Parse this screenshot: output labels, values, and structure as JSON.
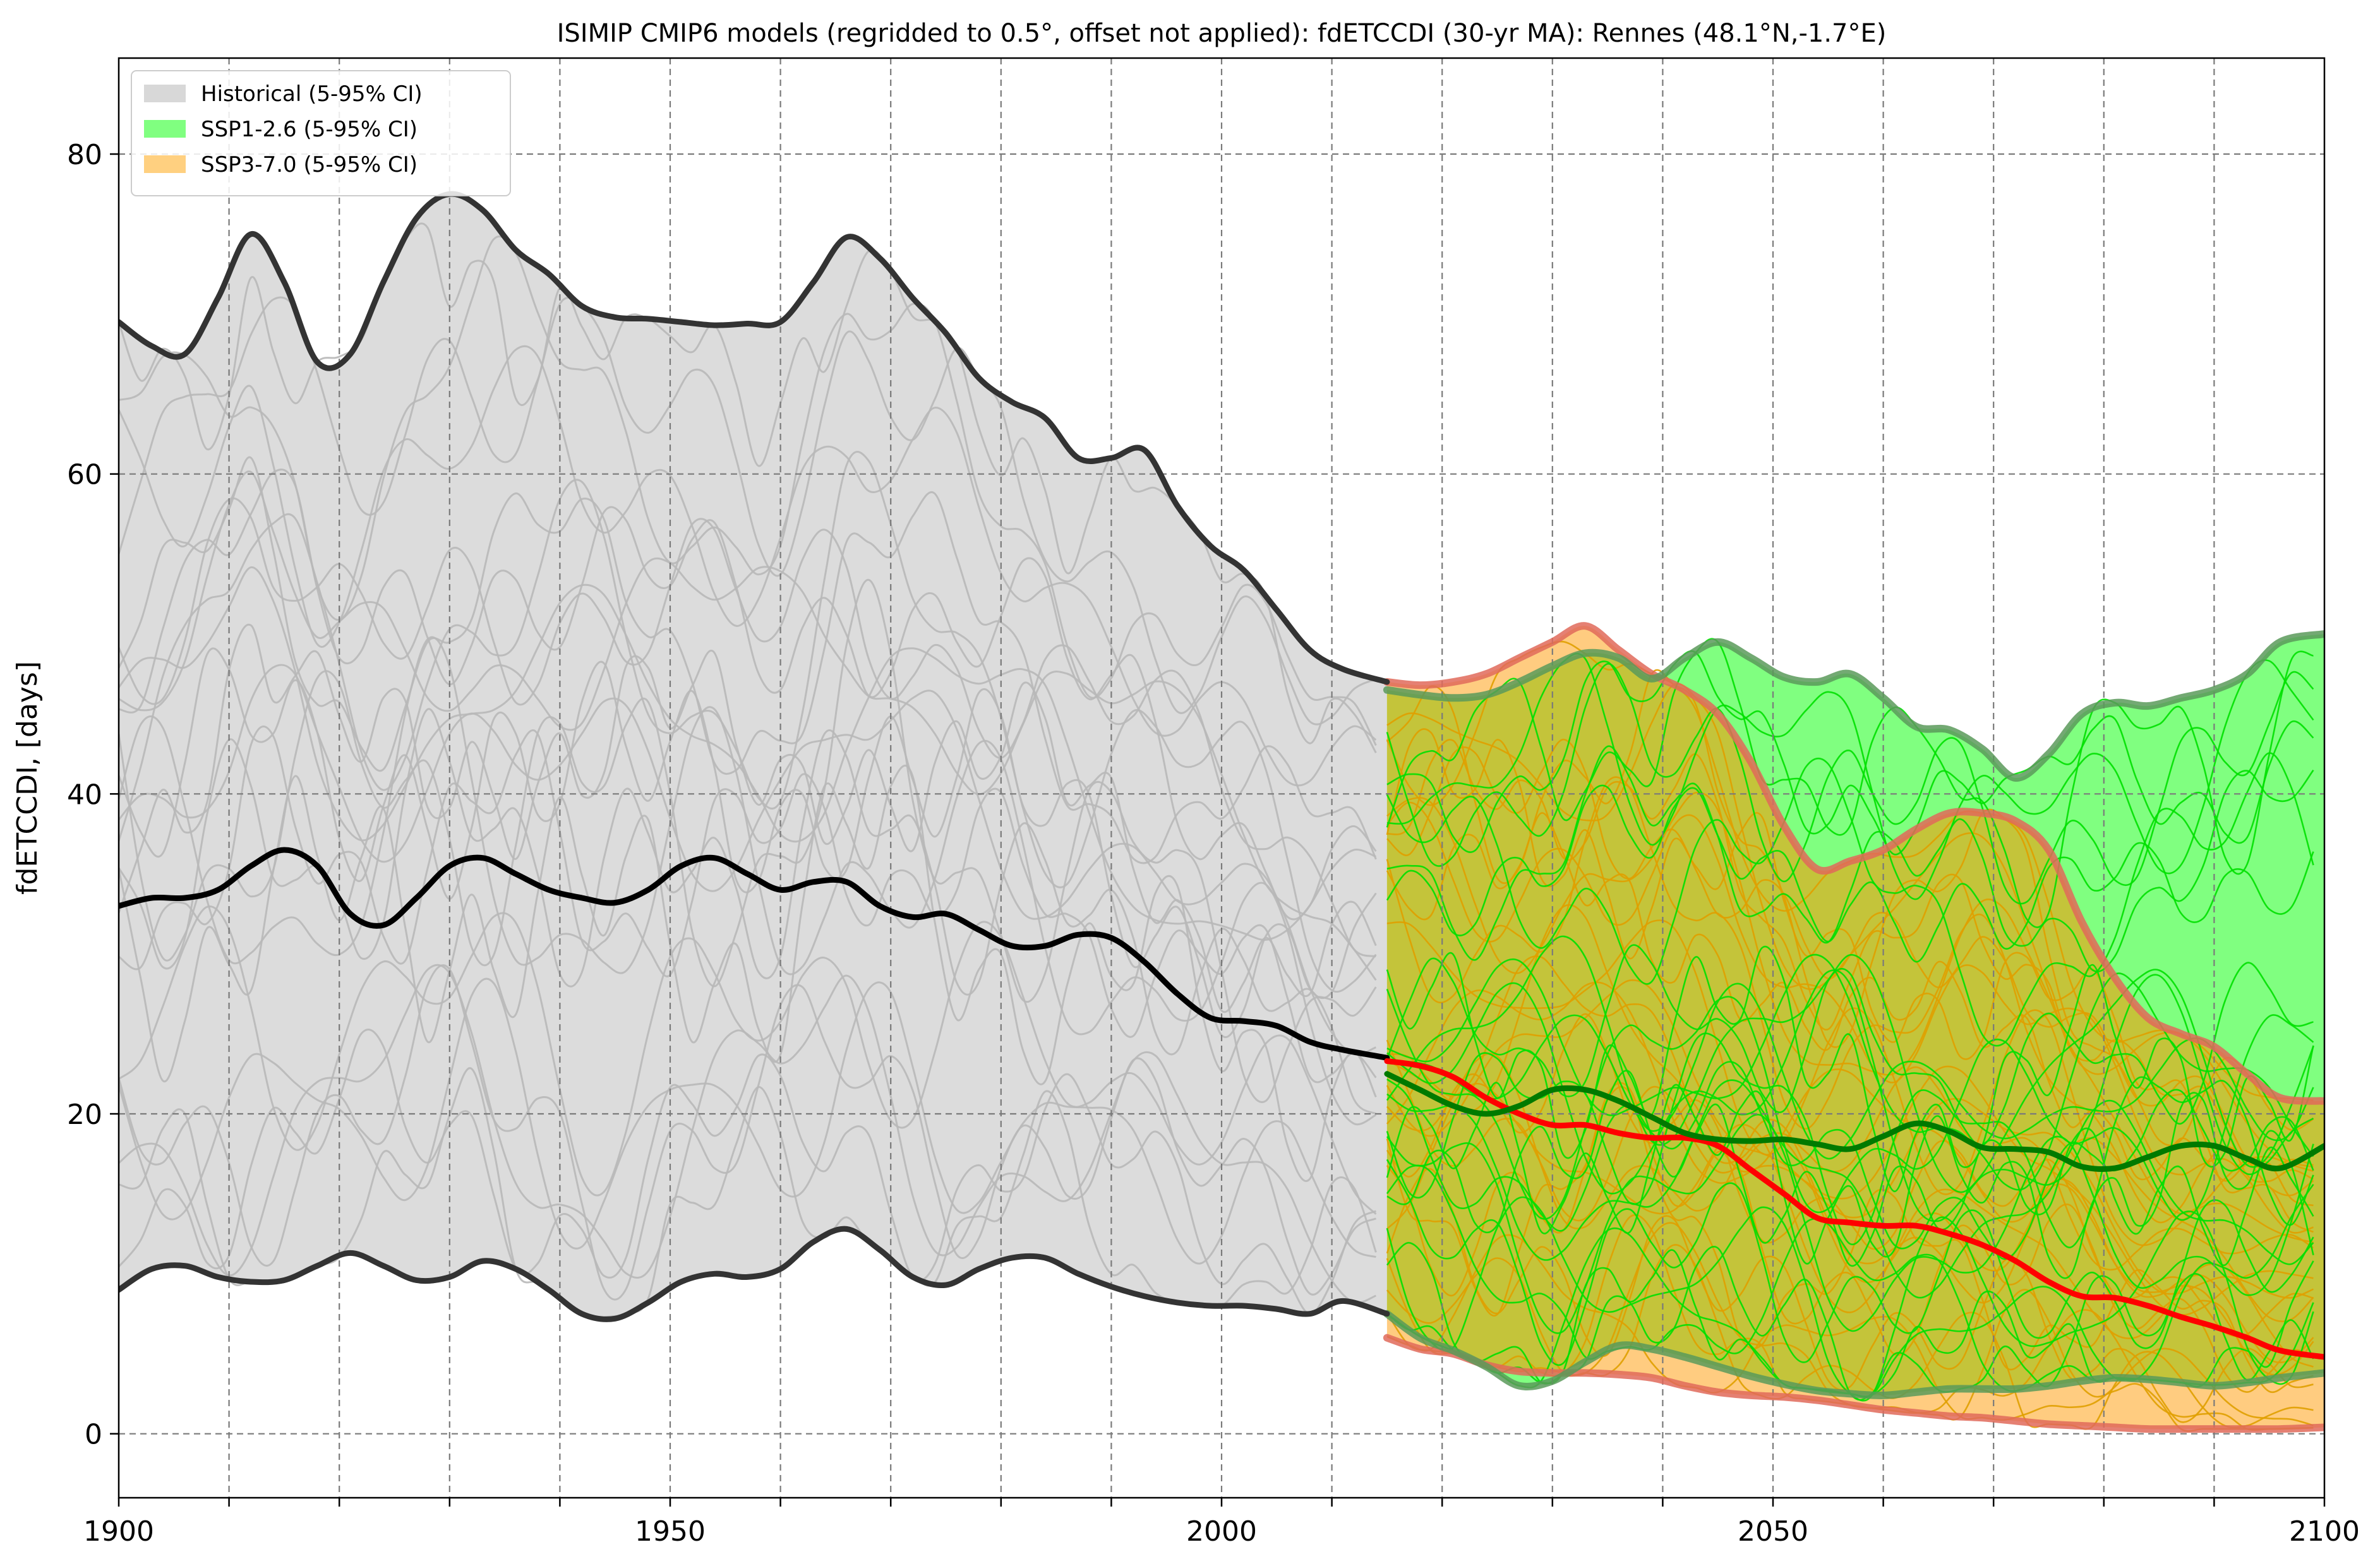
{
  "chart_data": {
    "type": "line",
    "title": "ISIMIP CMIP6 models (regridded to 0.5°, offset not applied): fdETCCDI (30-yr MA): Rennes (48.1°N,-1.7°E)",
    "xlabel": "",
    "ylabel": "fdETCCDI, [days]",
    "xlim": [
      1900,
      2100
    ],
    "ylim": [
      -4,
      86
    ],
    "x_ticks": [
      1900,
      1950,
      2000,
      2050,
      2100
    ],
    "y_ticks": [
      0,
      20,
      40,
      60,
      80
    ],
    "grid": true,
    "legend_position": "top-left",
    "legend": [
      {
        "label": "Historical (5-95% CI)",
        "color": "#d8d8d8"
      },
      {
        "label": "SSP1-2.6 (5-95% CI)",
        "color": "#80ff80"
      },
      {
        "label": "SSP3-7.0 (5-95% CI)",
        "color": "#ffd080"
      }
    ],
    "colors": {
      "historical_band": "#dcdcdc",
      "historical_line": "#333333",
      "historical_median": "#000000",
      "historical_members": "#b8b8b8",
      "ssp126_band": "#80ff80",
      "ssp126_line": "#5a9a5a",
      "ssp126_median": "#007a00",
      "ssp126_members": "#00e000",
      "ssp370_band": "#ffcc80",
      "ssp370_line": "#e06a5a",
      "ssp370_median": "#ff0000",
      "ssp370_members": "#e0a000",
      "overlap": "#c4c43a"
    },
    "historical": {
      "x": [
        1900,
        1903,
        1906,
        1909,
        1912,
        1915,
        1918,
        1921,
        1924,
        1927,
        1930,
        1933,
        1936,
        1939,
        1942,
        1945,
        1948,
        1951,
        1954,
        1957,
        1960,
        1963,
        1966,
        1969,
        1972,
        1975,
        1978,
        1981,
        1984,
        1987,
        1990,
        1993,
        1996,
        1999,
        2002,
        2005,
        2008,
        2011,
        2015
      ],
      "upper": [
        69.5,
        68.0,
        67.5,
        71.0,
        75.0,
        72.0,
        67.0,
        67.5,
        72.0,
        76.0,
        77.5,
        76.5,
        74.0,
        72.5,
        70.5,
        69.8,
        69.7,
        69.5,
        69.3,
        69.4,
        69.5,
        72.0,
        74.8,
        73.5,
        71.0,
        68.8,
        66.0,
        64.5,
        63.5,
        61.0,
        61.0,
        61.5,
        58.0,
        55.5,
        54.0,
        51.5,
        49.0,
        47.8,
        47.0
      ],
      "median": [
        33.0,
        33.5,
        33.5,
        34.0,
        35.5,
        36.5,
        35.5,
        32.5,
        31.8,
        33.5,
        35.5,
        36.0,
        35.0,
        34.0,
        33.5,
        33.2,
        34.0,
        35.5,
        36.0,
        35.0,
        34.0,
        34.5,
        34.5,
        33.0,
        32.3,
        32.5,
        31.5,
        30.5,
        30.5,
        31.2,
        31.0,
        29.5,
        27.5,
        26.0,
        25.8,
        25.5,
        24.5,
        24.0,
        23.5
      ],
      "lower": [
        9.0,
        10.3,
        10.5,
        9.8,
        9.5,
        9.6,
        10.5,
        11.3,
        10.5,
        9.6,
        9.8,
        10.8,
        10.3,
        9.0,
        7.5,
        7.2,
        8.2,
        9.5,
        10.0,
        9.8,
        10.3,
        12.0,
        12.8,
        11.5,
        9.8,
        9.3,
        10.3,
        11.0,
        11.0,
        10.0,
        9.2,
        8.6,
        8.2,
        8.0,
        8.0,
        7.8,
        7.5,
        8.3,
        7.5
      ]
    },
    "ssp126": {
      "x": [
        2015,
        2018,
        2021,
        2024,
        2027,
        2030,
        2033,
        2036,
        2039,
        2042,
        2045,
        2048,
        2051,
        2054,
        2057,
        2060,
        2063,
        2066,
        2069,
        2072,
        2075,
        2078,
        2081,
        2084,
        2087,
        2090,
        2093,
        2096,
        2100
      ],
      "upper": [
        46.5,
        46.2,
        46.0,
        46.2,
        47.0,
        48.0,
        48.8,
        48.5,
        47.2,
        48.5,
        49.5,
        48.5,
        47.3,
        47.0,
        47.5,
        46.0,
        44.2,
        44.0,
        42.8,
        41.0,
        42.5,
        45.0,
        45.7,
        45.5,
        46.0,
        46.5,
        47.5,
        49.5,
        50.0
      ],
      "median": [
        22.5,
        21.5,
        20.5,
        20.0,
        20.5,
        21.5,
        21.5,
        20.8,
        19.8,
        18.8,
        18.4,
        18.3,
        18.4,
        18.1,
        17.8,
        18.6,
        19.4,
        18.9,
        17.9,
        17.8,
        17.6,
        16.7,
        16.6,
        17.3,
        18.0,
        18.0,
        17.2,
        16.6,
        18.0
      ],
      "lower": [
        7.5,
        6.0,
        5.2,
        4.2,
        3.0,
        3.3,
        4.5,
        5.5,
        5.3,
        4.8,
        4.2,
        3.6,
        3.1,
        2.7,
        2.5,
        2.4,
        2.6,
        2.8,
        2.8,
        2.8,
        3.0,
        3.3,
        3.5,
        3.4,
        3.2,
        3.0,
        3.2,
        3.5,
        3.8
      ]
    },
    "ssp370": {
      "x": [
        2015,
        2018,
        2021,
        2024,
        2027,
        2030,
        2033,
        2036,
        2039,
        2042,
        2045,
        2048,
        2051,
        2054,
        2057,
        2060,
        2063,
        2066,
        2069,
        2072,
        2075,
        2078,
        2081,
        2084,
        2087,
        2090,
        2093,
        2096,
        2100
      ],
      "upper": [
        47.0,
        46.8,
        47.0,
        47.5,
        48.5,
        49.5,
        50.5,
        49.0,
        47.5,
        46.5,
        45.0,
        42.0,
        38.0,
        35.3,
        35.8,
        36.5,
        37.8,
        38.8,
        38.8,
        38.3,
        36.5,
        32.0,
        28.5,
        26.0,
        25.0,
        24.2,
        22.5,
        21.0,
        20.8
      ],
      "median": [
        23.3,
        23.0,
        22.3,
        21.0,
        20.0,
        19.3,
        19.3,
        18.8,
        18.5,
        18.5,
        18.0,
        16.5,
        15.0,
        13.5,
        13.2,
        13.0,
        13.0,
        12.5,
        11.8,
        10.8,
        9.5,
        8.6,
        8.5,
        8.0,
        7.3,
        6.7,
        6.0,
        5.2,
        4.8
      ],
      "lower": [
        6.0,
        5.3,
        5.0,
        4.3,
        3.9,
        3.8,
        3.8,
        3.7,
        3.5,
        3.0,
        2.6,
        2.4,
        2.3,
        2.1,
        1.8,
        1.5,
        1.3,
        1.1,
        1.0,
        0.8,
        0.6,
        0.5,
        0.4,
        0.3,
        0.3,
        0.3,
        0.3,
        0.3,
        0.4
      ]
    }
  }
}
